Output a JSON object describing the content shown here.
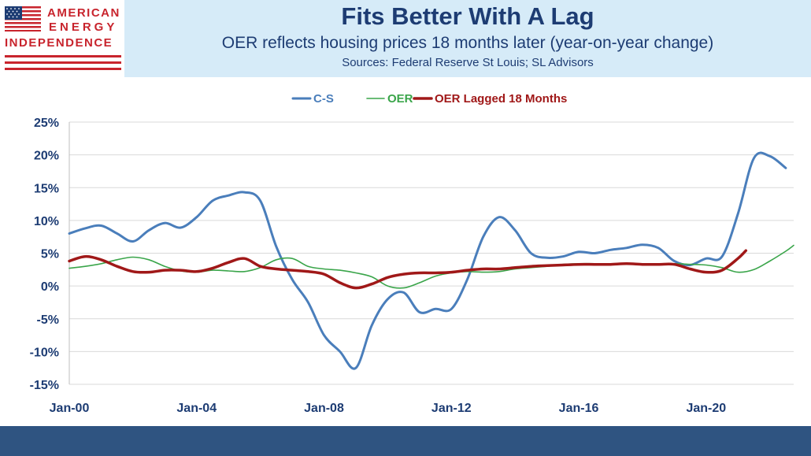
{
  "logo": {
    "line1": "AMERICAN",
    "line2": "ENERGY",
    "line3": "INDEPENDENCE"
  },
  "colors": {
    "header_band": "#d6ebf8",
    "title": "#1d3c73",
    "logo_red": "#c8242d",
    "bottom_bar": "#2f5481",
    "grid": "#d9d9d9"
  },
  "chart_data": {
    "type": "line",
    "title": "Fits Better With A Lag",
    "subtitle": "OER reflects housing prices 18 months later (year-on-year change)",
    "sources": "Sources: Federal Reserve St Louis; SL Advisors",
    "xlabel": "",
    "ylabel": "",
    "ylim": [
      -15,
      25
    ],
    "y_ticks": [
      25,
      20,
      15,
      10,
      5,
      0,
      -5,
      -10,
      -15
    ],
    "y_tick_labels": [
      "25%",
      "20%",
      "15%",
      "10%",
      "5%",
      "0%",
      "-5%",
      "-10%",
      "-15%"
    ],
    "x_range": [
      2000.0,
      2022.75
    ],
    "x_ticks": [
      2000,
      2004,
      2008,
      2012,
      2016,
      2020
    ],
    "x_tick_labels": [
      "Jan-00",
      "Jan-04",
      "Jan-08",
      "Jan-12",
      "Jan-16",
      "Jan-20"
    ],
    "grid": "horizontal",
    "legend_position": "top-center",
    "series": [
      {
        "name": "C-S",
        "color": "#4a7ebb",
        "x": [
          2000.0,
          2000.5,
          2001.0,
          2001.5,
          2002.0,
          2002.5,
          2003.0,
          2003.5,
          2004.0,
          2004.5,
          2005.0,
          2005.5,
          2006.0,
          2006.5,
          2007.0,
          2007.5,
          2008.0,
          2008.5,
          2009.0,
          2009.5,
          2010.0,
          2010.5,
          2011.0,
          2011.5,
          2012.0,
          2012.5,
          2013.0,
          2013.5,
          2014.0,
          2014.5,
          2015.0,
          2015.5,
          2016.0,
          2016.5,
          2017.0,
          2017.5,
          2018.0,
          2018.5,
          2019.0,
          2019.5,
          2020.0,
          2020.5,
          2021.0,
          2021.5,
          2022.0,
          2022.5
        ],
        "values": [
          8.0,
          8.8,
          9.2,
          8.0,
          6.8,
          8.5,
          9.6,
          8.9,
          10.5,
          13.0,
          13.8,
          14.3,
          13.0,
          6.0,
          1.0,
          -2.5,
          -7.5,
          -10.0,
          -12.5,
          -6.0,
          -2.0,
          -1.0,
          -4.0,
          -3.5,
          -3.5,
          1.0,
          7.5,
          10.5,
          8.5,
          5.0,
          4.3,
          4.5,
          5.2,
          5.0,
          5.5,
          5.8,
          6.3,
          5.8,
          3.8,
          3.2,
          4.2,
          4.5,
          11.0,
          19.5,
          19.8,
          18.0
        ]
      },
      {
        "name": "OER",
        "color": "#3aa54a",
        "x": [
          2000.0,
          2000.5,
          2001.0,
          2001.5,
          2002.0,
          2002.5,
          2003.0,
          2003.5,
          2004.0,
          2004.5,
          2005.0,
          2005.5,
          2006.0,
          2006.5,
          2007.0,
          2007.5,
          2008.0,
          2008.5,
          2009.0,
          2009.5,
          2010.0,
          2010.5,
          2011.0,
          2011.5,
          2012.0,
          2012.5,
          2013.0,
          2013.5,
          2014.0,
          2014.5,
          2015.0,
          2015.5,
          2016.0,
          2016.5,
          2017.0,
          2017.5,
          2018.0,
          2018.5,
          2019.0,
          2019.5,
          2020.0,
          2020.5,
          2021.0,
          2021.5,
          2022.0,
          2022.5,
          2022.75
        ],
        "values": [
          2.7,
          3.0,
          3.4,
          4.0,
          4.4,
          4.0,
          3.0,
          2.3,
          2.1,
          2.4,
          2.3,
          2.2,
          2.8,
          4.0,
          4.2,
          3.0,
          2.6,
          2.4,
          2.0,
          1.4,
          0.0,
          -0.3,
          0.5,
          1.5,
          2.0,
          2.2,
          2.1,
          2.2,
          2.6,
          2.8,
          3.0,
          3.3,
          3.4,
          3.4,
          3.3,
          3.3,
          3.3,
          3.3,
          3.4,
          3.3,
          3.2,
          2.8,
          2.1,
          2.5,
          3.8,
          5.3,
          6.2
        ]
      },
      {
        "name": "OER Lagged 18 Months",
        "color": "#a01818",
        "x": [
          2000.0,
          2000.5,
          2001.0,
          2001.5,
          2002.0,
          2002.5,
          2003.0,
          2003.5,
          2004.0,
          2004.5,
          2005.0,
          2005.5,
          2006.0,
          2006.5,
          2007.0,
          2007.5,
          2008.0,
          2008.5,
          2009.0,
          2009.5,
          2010.0,
          2010.5,
          2011.0,
          2011.5,
          2012.0,
          2012.5,
          2013.0,
          2013.5,
          2014.0,
          2014.5,
          2015.0,
          2015.5,
          2016.0,
          2016.5,
          2017.0,
          2017.5,
          2018.0,
          2018.5,
          2019.0,
          2019.5,
          2020.0,
          2020.5,
          2021.0,
          2021.25
        ],
        "values": [
          3.8,
          4.5,
          4.0,
          3.0,
          2.2,
          2.1,
          2.4,
          2.4,
          2.2,
          2.7,
          3.6,
          4.2,
          3.0,
          2.6,
          2.4,
          2.2,
          1.8,
          0.5,
          -0.3,
          0.3,
          1.3,
          1.8,
          2.0,
          2.0,
          2.1,
          2.4,
          2.6,
          2.6,
          2.8,
          3.0,
          3.1,
          3.2,
          3.3,
          3.3,
          3.3,
          3.4,
          3.3,
          3.3,
          3.3,
          2.6,
          2.1,
          2.4,
          4.2,
          5.4
        ]
      }
    ]
  }
}
